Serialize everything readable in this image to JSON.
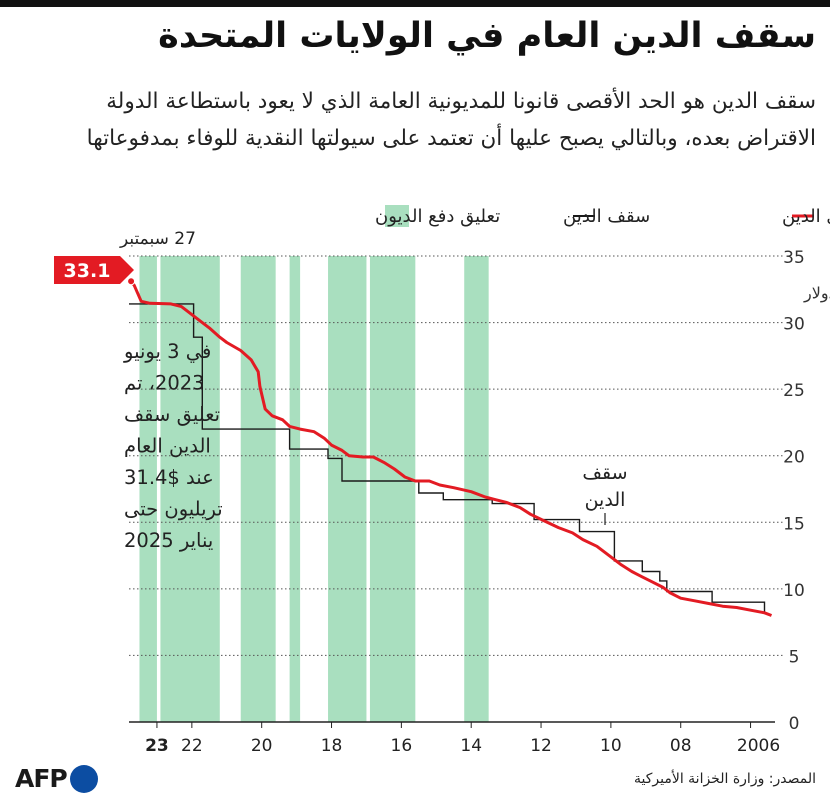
{
  "title": "سقف الدين العام في الولايات المتحدة",
  "subtitle": "سقف الدين هو الحد الأقصى قانونا للمديونية العامة الذي لا يعود باستطاعة الدولة الاقتراض بعده، وبالتالي يصبح عليها أن تعتمد على سيولتها النقدية للوفاء بمدفوعاتها",
  "source": "المصدر: وزارة الخزانة الأميركية",
  "logo_text": "AFP",
  "colors": {
    "debt_level": "#e31b23",
    "debt_ceiling": "#1a1a1a",
    "suspension": "#a9dfbf",
    "brand_dot": "#0c4da2"
  },
  "chart_data": {
    "type": "line",
    "legend": [
      {
        "label": "مستوى الدين",
        "kind": "line",
        "color": "#e31b23"
      },
      {
        "label": "سقف الدين",
        "kind": "line",
        "color": "#1a1a1a"
      },
      {
        "label": "تعليق دفع الديون",
        "kind": "band",
        "color": "#a9dfbf"
      }
    ],
    "legend_position": "top",
    "x_axis": {
      "direction": "reversed",
      "range": [
        2005.3,
        2023.8
      ]
    },
    "y_axis": {
      "range": [
        0,
        35
      ],
      "side": "right",
      "unit_label": "تريليون دولار"
    },
    "x_ticks": [
      {
        "year": 2023,
        "label": "23",
        "bold": true
      },
      {
        "year": 2022,
        "label": "22"
      },
      {
        "year": 2020,
        "label": "20"
      },
      {
        "year": 2018,
        "label": "18"
      },
      {
        "year": 2016,
        "label": "16"
      },
      {
        "year": 2014,
        "label": "14"
      },
      {
        "year": 2012,
        "label": "12"
      },
      {
        "year": 2010,
        "label": "10"
      },
      {
        "year": 2008,
        "label": "08"
      },
      {
        "year": 2006,
        "label": "2006"
      }
    ],
    "y_ticks": [
      0,
      5,
      10,
      15,
      20,
      25,
      30,
      35
    ],
    "grid": true,
    "suspension_periods": [
      [
        2023.0,
        2023.5
      ],
      [
        2021.2,
        2022.9
      ],
      [
        2019.6,
        2020.6
      ],
      [
        2018.9,
        2019.2
      ],
      [
        2017.0,
        2018.1
      ],
      [
        2015.6,
        2016.9
      ],
      [
        2013.5,
        2014.2
      ]
    ],
    "debt_ceiling": [
      [
        2023.8,
        31.4
      ],
      [
        2021.95,
        31.4
      ],
      [
        2021.95,
        28.9
      ],
      [
        2021.7,
        28.9
      ],
      [
        2021.7,
        22.0
      ],
      [
        2019.2,
        22.0
      ],
      [
        2019.2,
        20.5
      ],
      [
        2018.1,
        20.5
      ],
      [
        2018.1,
        19.8
      ],
      [
        2017.7,
        19.8
      ],
      [
        2017.7,
        18.1
      ],
      [
        2015.5,
        18.1
      ],
      [
        2015.5,
        17.2
      ],
      [
        2014.8,
        17.2
      ],
      [
        2014.8,
        16.7
      ],
      [
        2013.4,
        16.7
      ],
      [
        2013.4,
        16.4
      ],
      [
        2012.2,
        16.4
      ],
      [
        2012.2,
        15.2
      ],
      [
        2010.9,
        15.2
      ],
      [
        2010.9,
        14.3
      ],
      [
        2009.9,
        14.3
      ],
      [
        2009.9,
        12.1
      ],
      [
        2009.1,
        12.1
      ],
      [
        2009.1,
        11.3
      ],
      [
        2008.6,
        11.3
      ],
      [
        2008.6,
        10.6
      ],
      [
        2008.4,
        10.6
      ],
      [
        2008.4,
        9.8
      ],
      [
        2007.1,
        9.8
      ],
      [
        2007.1,
        9.0
      ],
      [
        2005.6,
        9.0
      ],
      [
        2005.6,
        8.2
      ]
    ],
    "debt_level": [
      [
        2023.74,
        33.1
      ],
      [
        2023.65,
        32.8
      ],
      [
        2023.55,
        32.2
      ],
      [
        2023.45,
        31.6
      ],
      [
        2023.2,
        31.45
      ],
      [
        2022.6,
        31.4
      ],
      [
        2022.3,
        31.2
      ],
      [
        2022.1,
        30.8
      ],
      [
        2021.8,
        30.2
      ],
      [
        2021.5,
        29.6
      ],
      [
        2021.2,
        28.9
      ],
      [
        2021.0,
        28.5
      ],
      [
        2020.6,
        27.9
      ],
      [
        2020.3,
        27.2
      ],
      [
        2020.1,
        26.3
      ],
      [
        2020.05,
        25.2
      ],
      [
        2019.9,
        23.5
      ],
      [
        2019.7,
        23.0
      ],
      [
        2019.4,
        22.7
      ],
      [
        2019.2,
        22.2
      ],
      [
        2018.9,
        22.0
      ],
      [
        2018.5,
        21.8
      ],
      [
        2018.2,
        21.3
      ],
      [
        2018.0,
        20.8
      ],
      [
        2017.7,
        20.4
      ],
      [
        2017.5,
        20.0
      ],
      [
        2017.1,
        19.9
      ],
      [
        2016.8,
        19.9
      ],
      [
        2016.5,
        19.5
      ],
      [
        2016.2,
        19.0
      ],
      [
        2015.9,
        18.4
      ],
      [
        2015.6,
        18.1
      ],
      [
        2015.2,
        18.1
      ],
      [
        2014.9,
        17.8
      ],
      [
        2014.5,
        17.6
      ],
      [
        2014.0,
        17.3
      ],
      [
        2013.6,
        16.9
      ],
      [
        2013.3,
        16.7
      ],
      [
        2013.0,
        16.5
      ],
      [
        2012.6,
        16.1
      ],
      [
        2012.3,
        15.6
      ],
      [
        2011.9,
        15.1
      ],
      [
        2011.5,
        14.6
      ],
      [
        2011.1,
        14.2
      ],
      [
        2010.8,
        13.7
      ],
      [
        2010.4,
        13.2
      ],
      [
        2010.0,
        12.4
      ],
      [
        2009.7,
        11.8
      ],
      [
        2009.4,
        11.3
      ],
      [
        2009.1,
        10.9
      ],
      [
        2008.8,
        10.5
      ],
      [
        2008.5,
        10.1
      ],
      [
        2008.3,
        9.7
      ],
      [
        2008.0,
        9.3
      ],
      [
        2007.6,
        9.1
      ],
      [
        2007.2,
        8.9
      ],
      [
        2006.8,
        8.7
      ],
      [
        2006.4,
        8.6
      ],
      [
        2006.0,
        8.4
      ],
      [
        2005.6,
        8.2
      ],
      [
        2005.4,
        8.0
      ]
    ],
    "annotations": {
      "latest_value": "33.1",
      "latest_date": "27 سبمتبر",
      "suspension_note": [
        "في 3 يونيو",
        "2023، تم",
        "تعليق سقف",
        "الدين العام",
        "عند $31.4",
        "تريليون حتى",
        "يناير 2025"
      ],
      "ceiling_label": [
        "سقف",
        "الدين"
      ]
    }
  }
}
